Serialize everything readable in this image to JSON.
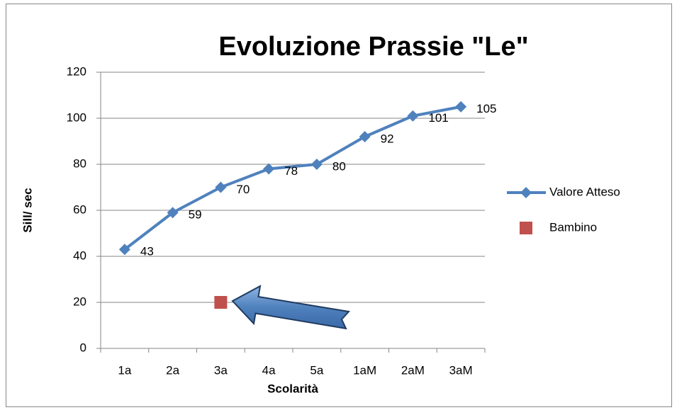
{
  "chart_data": {
    "type": "line",
    "title": "Evoluzione Prassie \"Le\"",
    "x_label": "Scolarità",
    "y_label": "Sill/ sec",
    "categories": [
      "1a",
      "2a",
      "3a",
      "4a",
      "5a",
      "1aM",
      "2aM",
      "3aM"
    ],
    "series": [
      {
        "name": "Valore Atteso",
        "color": "#4f81bd",
        "marker": "diamond",
        "data_labels": true,
        "values": [
          43,
          59,
          70,
          78,
          80,
          92,
          101,
          105
        ]
      },
      {
        "name": "Bambino",
        "color": "#c0504d",
        "marker": "square",
        "data_labels": false,
        "values": [
          null,
          null,
          20,
          null,
          null,
          null,
          null,
          null
        ]
      }
    ],
    "ylim": [
      0,
      120
    ],
    "yticks": [
      0,
      20,
      40,
      60,
      80,
      100,
      120
    ],
    "grid": true,
    "legend": "right"
  }
}
